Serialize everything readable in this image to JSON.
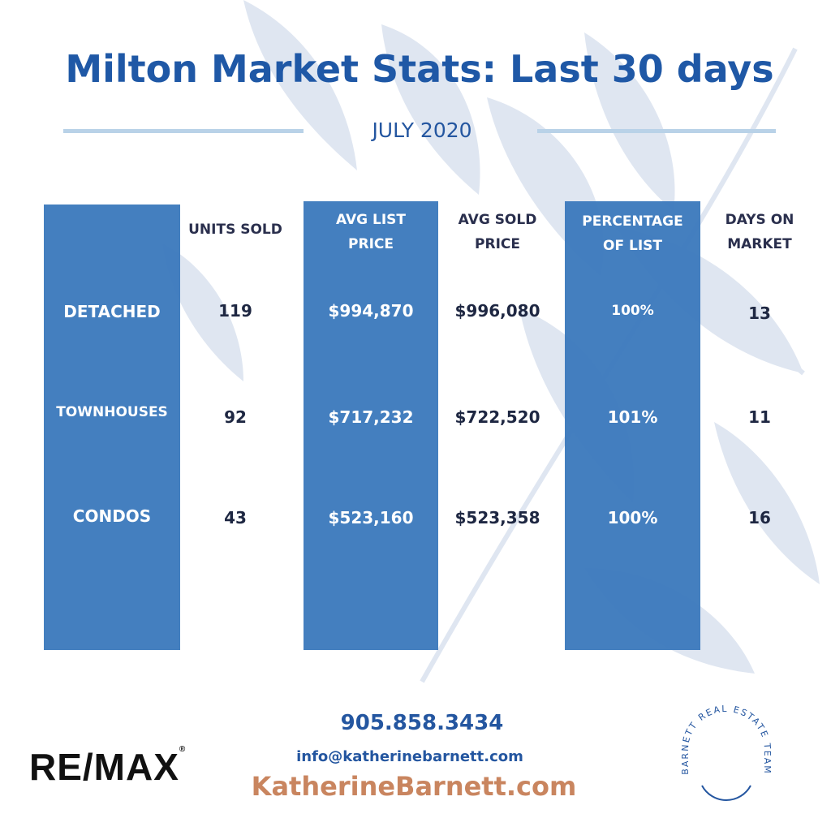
{
  "title": "Milton Market Stats: Last 30 days",
  "subtitle": "JULY 2020",
  "columns": {
    "units_sold": "UNITS SOLD",
    "avg_list_1": "AVG LIST",
    "avg_list_2": "PRICE",
    "avg_sold_1": "AVG SOLD",
    "avg_sold_2": "PRICE",
    "pct_1": "PERCENTAGE",
    "pct_2": "OF LIST",
    "dom_1": "DAYS ON",
    "dom_2": "MARKET"
  },
  "rows": [
    {
      "label": "DETACHED",
      "units": "119",
      "list": "$994,870",
      "sold": "$996,080",
      "pct": "100%",
      "dom": "13"
    },
    {
      "label": "TOWNHOUSES",
      "units": "92",
      "list": "$717,232",
      "sold": "$722,520",
      "pct": "101%",
      "dom": "11"
    },
    {
      "label": "CONDOS",
      "units": "43",
      "list": "$523,160",
      "sold": "$523,358",
      "pct": "100%",
      "dom": "16"
    }
  ],
  "contact": {
    "phone": "905.858.3434",
    "email": "info@katherinebarnett.com",
    "website": "KatherineBarnett.com"
  },
  "brand": {
    "remax": "RE/MAX",
    "remax_mark": "®",
    "team": "BARNETT REAL ESTATE TEAM"
  },
  "colors": {
    "band": "#3c7abc",
    "title": "#1f58a6",
    "website": "#c9855f"
  }
}
